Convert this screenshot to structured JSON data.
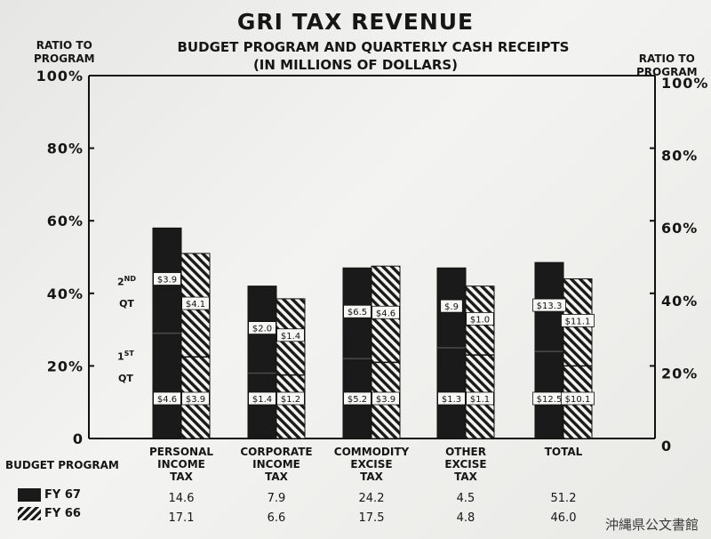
{
  "title": "GRI TAX REVENUE",
  "subtitle_line1": "BUDGET PROGRAM AND QUARTERLY CASH RECEIPTS",
  "subtitle_line2": "(IN MILLIONS OF DOLLARS)",
  "y_axis_label": "RATIO TO PROGRAM",
  "y_ticks_left": [
    "100%",
    "80%",
    "60%",
    "40%",
    "20%",
    "0"
  ],
  "y_ticks_right": [
    "100%",
    "80%",
    "60%",
    "40%",
    "20%",
    "0"
  ],
  "quarter_labels": {
    "second": "2",
    "second_suffix": "ND",
    "second_qt": "QT",
    "first": "1",
    "first_suffix": "ST",
    "first_qt": "QT"
  },
  "budget_program_label": "BUDGET PROGRAM",
  "colors": {
    "fy67": "#1a1a1a",
    "fy66_hatch": "#1a1a1a",
    "background": "#efefed"
  },
  "watermark": "沖縄県公文書館",
  "chart_data": {
    "type": "bar",
    "ylim": [
      0,
      100
    ],
    "y_unit": "%",
    "grid": false,
    "categories": [
      [
        "PERSONAL",
        "INCOME",
        "TAX"
      ],
      [
        "CORPORATE",
        "INCOME",
        "TAX"
      ],
      [
        "COMMODITY",
        "EXCISE",
        "TAX"
      ],
      [
        "OTHER",
        "EXCISE",
        "TAX"
      ],
      [
        "TOTAL"
      ]
    ],
    "series": [
      {
        "name": "FY 67",
        "pattern": "solid",
        "ratio_total": [
          58,
          42,
          47,
          47,
          48.5
        ],
        "ratio_first_qt": [
          29,
          18,
          22,
          25,
          24
        ],
        "first_qt_labels": [
          "$4.6",
          "$1.4",
          "$5.2",
          "$1.3",
          "$12.5"
        ],
        "second_qt_labels": [
          "$3.9",
          "$2.0",
          "$6.5",
          "$.9",
          "$13.3"
        ],
        "budget_program": [
          "14.6",
          "7.9",
          "24.2",
          "4.5",
          "51.2"
        ]
      },
      {
        "name": "FY 66",
        "pattern": "hatched",
        "ratio_total": [
          51,
          38.5,
          47.5,
          42,
          44
        ],
        "ratio_first_qt": [
          22.5,
          17.5,
          21,
          23,
          20
        ],
        "first_qt_labels": [
          "$3.9",
          "$1.2",
          "$3.9",
          "$1.1",
          "$10.1"
        ],
        "second_qt_labels": [
          "$4.1",
          "$1.4",
          "$4.6",
          "$1.0",
          "$11.1"
        ],
        "budget_program": [
          "17.1",
          "6.6",
          "17.5",
          "4.8",
          "46.0"
        ]
      }
    ]
  }
}
